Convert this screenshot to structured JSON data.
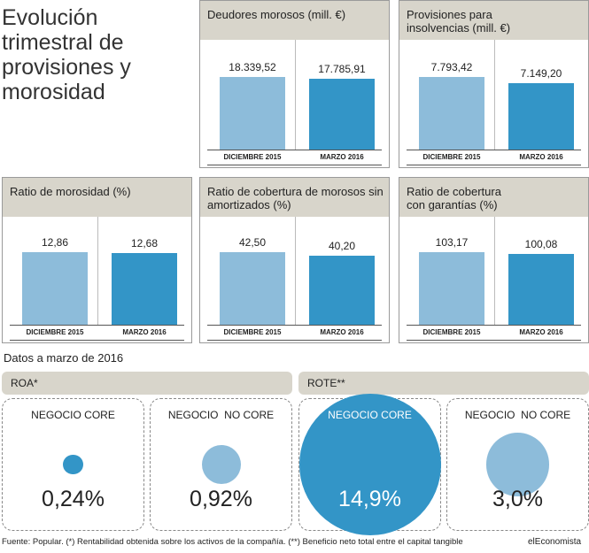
{
  "title": "Evolución trimestral de provisiones y morosidad",
  "subtitle": "Datos a marzo de 2016",
  "source": "Fuente: Popular. (*) Rentabilidad obtenida sobre los activos de la compañía. (**) Beneficio neto total entre el capital tangible",
  "brand": "elEconomista",
  "chart_data": [
    {
      "type": "bar",
      "title": "Deudores morosos  (mill. €)",
      "categories": [
        "DICIEMBRE 2015",
        "MARZO 2016"
      ],
      "values": [
        18339.52,
        17785.91
      ],
      "value_labels": [
        "18.339,52",
        "17.785,91"
      ],
      "colors": [
        "#8dbcda",
        "#3395c7"
      ]
    },
    {
      "type": "bar",
      "title": "Provisiones para insolvencias (mill. €)",
      "categories": [
        "DICIEMBRE 2015",
        "MARZO 2016"
      ],
      "values": [
        7793.42,
        7149.2
      ],
      "value_labels": [
        "7.793,42",
        "7.149,20"
      ],
      "colors": [
        "#8dbcda",
        "#3395c7"
      ]
    },
    {
      "type": "bar",
      "title": "Ratio de morosidad (%)",
      "categories": [
        "DICIEMBRE 2015",
        "MARZO 2016"
      ],
      "values": [
        12.86,
        12.68
      ],
      "value_labels": [
        "12,86",
        "12,68"
      ],
      "colors": [
        "#8dbcda",
        "#3395c7"
      ]
    },
    {
      "type": "bar",
      "title": "Ratio de cobertura de morosos sin amortizados (%)",
      "categories": [
        "DICIEMBRE 2015",
        "MARZO 2016"
      ],
      "values": [
        42.5,
        40.2
      ],
      "value_labels": [
        "42,50",
        "40,20"
      ],
      "colors": [
        "#8dbcda",
        "#3395c7"
      ]
    },
    {
      "type": "bar",
      "title": "Ratio de cobertura con garantías (%)",
      "categories": [
        "DICIEMBRE 2015",
        "MARZO 2016"
      ],
      "values": [
        103.17,
        100.08
      ],
      "value_labels": [
        "103,17",
        "100,08"
      ],
      "colors": [
        "#8dbcda",
        "#3395c7"
      ]
    },
    {
      "type": "bubble",
      "title": "ROA*",
      "categories": [
        "NEGOCIO CORE",
        "NEGOCIO  NO CORE"
      ],
      "values": [
        0.24,
        0.92
      ],
      "value_labels": [
        "0,24%",
        "0,92%"
      ],
      "colors": [
        "#3395c7",
        "#8dbcda"
      ]
    },
    {
      "type": "bubble",
      "title": "ROTE**",
      "categories": [
        "NEGOCIO CORE",
        "NEGOCIO  NO CORE"
      ],
      "values": [
        14.9,
        3.0
      ],
      "value_labels": [
        "14,9%",
        "3,0%"
      ],
      "colors": [
        "#3395c7",
        "#8dbcda"
      ]
    }
  ]
}
